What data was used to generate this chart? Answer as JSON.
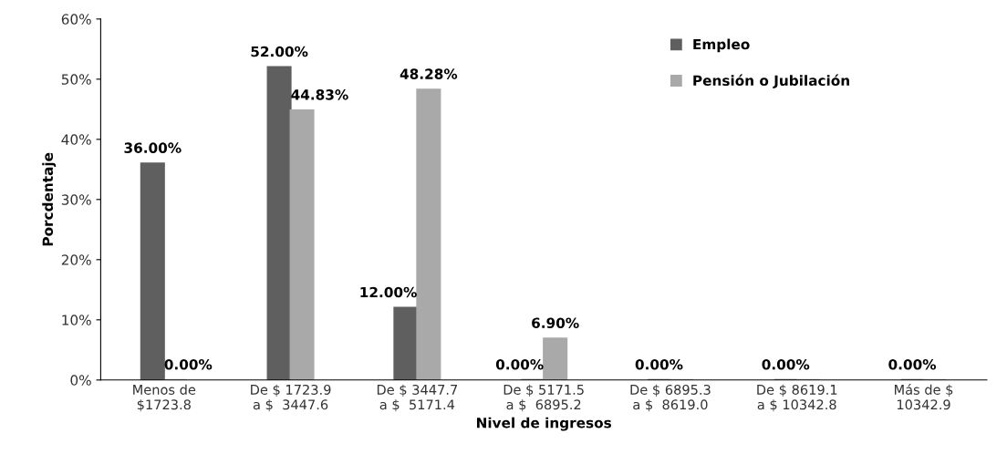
{
  "chart_data": {
    "type": "bar",
    "xlabel": "Nivel de ingresos",
    "ylabel": "Porcdentaje",
    "categories": [
      "Menos de\n$1723.8",
      "De $ 1723.9\na $  3447.6",
      "De $ 3447.7\na $  5171.4",
      "De $ 5171.5\na $  6895.2",
      "De $ 6895.3\na $  8619.0",
      "De $ 8619.1\na $ 10342.8",
      "Más de $\n10342.9"
    ],
    "series": [
      {
        "name": "Empleo",
        "color": "#5f5f5f",
        "values": [
          36.0,
          52.0,
          12.0,
          0.0,
          0.0,
          0.0,
          0.0
        ],
        "value_labels": [
          "36.00%",
          "52.00%",
          "12.00%",
          "0.00%",
          "0.00%",
          "0.00%",
          "0.00%"
        ]
      },
      {
        "name": "Pensión o Jubilación",
        "color": "#a9a9a9",
        "values": [
          0.0,
          44.83,
          48.28,
          6.9,
          0.0,
          0.0,
          0.0
        ],
        "value_labels": [
          "0.00%",
          "44.83%",
          "48.28%",
          "6.90%",
          null,
          null,
          null
        ]
      }
    ],
    "ylim": [
      0,
      60
    ],
    "yticks": [
      {
        "value": 0,
        "label": "0%"
      },
      {
        "value": 10,
        "label": "10%"
      },
      {
        "value": 20,
        "label": "20%"
      },
      {
        "value": 30,
        "label": "30%"
      },
      {
        "value": 40,
        "label": "40%"
      },
      {
        "value": 50,
        "label": "50%"
      },
      {
        "value": 60,
        "label": "60%"
      }
    ],
    "legend": "top right",
    "grid": false
  }
}
